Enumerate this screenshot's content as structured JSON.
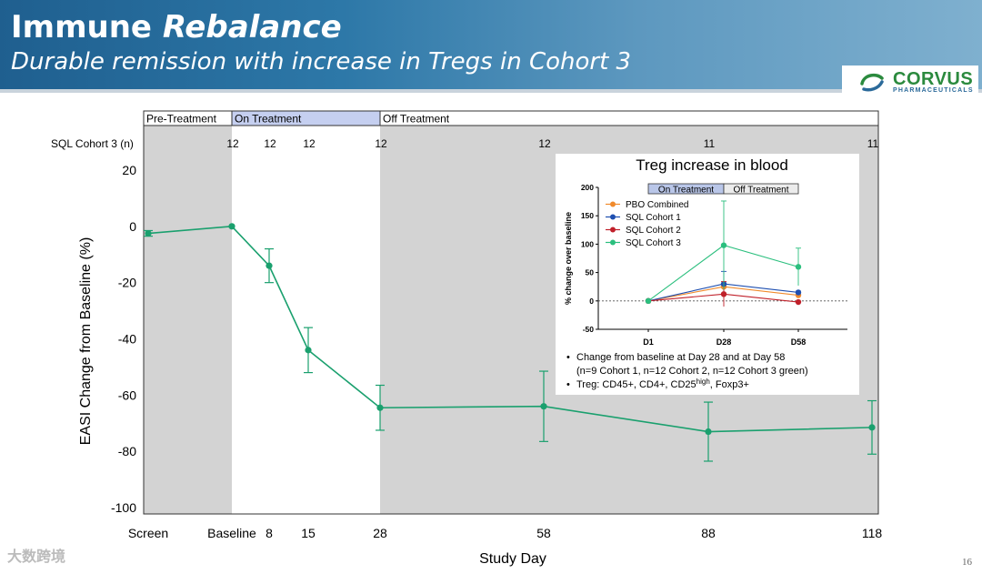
{
  "header": {
    "title_part1": "Immune ",
    "title_part2": "Rebalance",
    "subtitle": "Durable remission with increase in Tregs in Cohort 3"
  },
  "logo": {
    "name": "CORVUS",
    "sub": "PHARMACEUTICALS",
    "accent_color": "#2b8a3e"
  },
  "watermark": "大数跨境",
  "page_number": "16",
  "chart_data": [
    {
      "type": "line",
      "xlabel": "Study Day",
      "ylabel": "EASI Change from Baseline (%)",
      "ylim": [
        -100,
        20
      ],
      "yticks": [
        "20",
        "0",
        "-20",
        "-40",
        "-60",
        "-80",
        "-100"
      ],
      "x_categories": [
        "Screen",
        "Baseline",
        "8",
        "15",
        "28",
        "58",
        "88",
        "118"
      ],
      "phases": [
        {
          "label": "Pre-Treatment",
          "from": "Screen",
          "to": "Baseline",
          "shade": "#d3d3d3"
        },
        {
          "label": "On Treatment",
          "from": "Baseline",
          "to": "28",
          "shade": "#ffffff"
        },
        {
          "label": "Off Treatment",
          "from": "28",
          "to": "118",
          "shade": "#d3d3d3"
        }
      ],
      "n_row_label": "SQL Cohort 3 (n)",
      "n_values": [
        "12",
        "12",
        "12",
        "12",
        "12",
        "11",
        "11"
      ],
      "series": [
        {
          "color": "#1aa06e",
          "x": [
            "Screen",
            "Baseline",
            "8",
            "15",
            "28",
            "58",
            "88",
            "118"
          ],
          "y": [
            -2.5,
            0,
            -14,
            -44,
            -64.5,
            -64,
            -73,
            -71.5
          ],
          "err": [
            1.0,
            0,
            6,
            8,
            8,
            12.5,
            10.5,
            9.5
          ]
        }
      ]
    },
    {
      "type": "line",
      "title": "Treg increase in blood",
      "ylabel": "% change over baseline",
      "ylim": [
        -50,
        200
      ],
      "yticks": [
        "200",
        "150",
        "100",
        "50",
        "0",
        "-50"
      ],
      "categories": [
        "D1",
        "D28",
        "D58"
      ],
      "phases": [
        {
          "label": "On Treatment",
          "shade": "#b9c6e8"
        },
        {
          "label": "Off Treatment",
          "shade": "#ececec"
        }
      ],
      "series": [
        {
          "name": "PBO Combined",
          "color": "#f08a2c",
          "values": [
            0,
            25,
            10
          ],
          "err": [
            0,
            0,
            0
          ]
        },
        {
          "name": "SQL Cohort 1",
          "color": "#1f4fb0",
          "values": [
            0,
            30,
            15
          ],
          "err": [
            0,
            22,
            0
          ]
        },
        {
          "name": "SQL Cohort 2",
          "color": "#c0202a",
          "values": [
            0,
            12,
            -2
          ],
          "err": [
            0,
            22,
            0
          ]
        },
        {
          "name": "SQL Cohort 3",
          "color": "#2bbf7e",
          "values": [
            0,
            98,
            60
          ],
          "err": [
            0,
            78,
            33
          ]
        }
      ],
      "notes": [
        "Change from baseline at Day 28 and at Day 58",
        "(n=9 Cohort 1, n=12 Cohort 2, n=12 Cohort 3 green)"
      ],
      "note_treg_prefix": "Treg: CD45+, CD4+, CD25",
      "note_treg_sup": "high",
      "note_treg_suffix": ", Foxp3+"
    }
  ]
}
